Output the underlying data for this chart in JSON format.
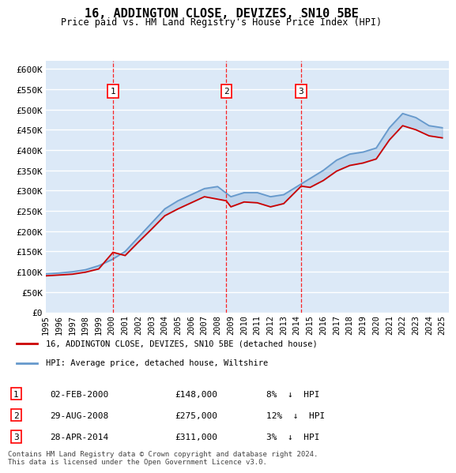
{
  "title": "16, ADDINGTON CLOSE, DEVIZES, SN10 5BE",
  "subtitle": "Price paid vs. HM Land Registry's House Price Index (HPI)",
  "ylabel_ticks": [
    "£0",
    "£50K",
    "£100K",
    "£150K",
    "£200K",
    "£250K",
    "£300K",
    "£350K",
    "£400K",
    "£450K",
    "£500K",
    "£550K",
    "£600K"
  ],
  "ytick_vals": [
    0,
    50000,
    100000,
    150000,
    200000,
    250000,
    300000,
    350000,
    400000,
    450000,
    500000,
    550000,
    600000
  ],
  "ylim": [
    0,
    620000
  ],
  "background_color": "#dce9f7",
  "plot_bg": "#dce9f7",
  "grid_color": "#ffffff",
  "line_color_red": "#cc0000",
  "line_color_blue": "#6699cc",
  "transactions": [
    {
      "num": 1,
      "date": "02-FEB-2000",
      "price": 148000,
      "pct": "8%",
      "direction": "↓",
      "x_year": 2000.08
    },
    {
      "num": 2,
      "date": "29-AUG-2008",
      "price": 275000,
      "pct": "12%",
      "direction": "↓",
      "x_year": 2008.65
    },
    {
      "num": 3,
      "date": "28-APR-2014",
      "price": 311000,
      "pct": "3%",
      "direction": "↓",
      "x_year": 2014.32
    }
  ],
  "legend_label_red": "16, ADDINGTON CLOSE, DEVIZES, SN10 5BE (detached house)",
  "legend_label_blue": "HPI: Average price, detached house, Wiltshire",
  "footer": "Contains HM Land Registry data © Crown copyright and database right 2024.\nThis data is licensed under the Open Government Licence v3.0.",
  "hpi_years": [
    1995,
    1996,
    1997,
    1998,
    1999,
    2000,
    2001,
    2002,
    2003,
    2004,
    2005,
    2006,
    2007,
    2008,
    2009,
    2010,
    2011,
    2012,
    2013,
    2014,
    2015,
    2016,
    2017,
    2018,
    2019,
    2020,
    2021,
    2022,
    2023,
    2024,
    2025
  ],
  "hpi_vals": [
    95000,
    97000,
    100000,
    105000,
    115000,
    130000,
    150000,
    185000,
    220000,
    255000,
    275000,
    290000,
    305000,
    310000,
    285000,
    295000,
    295000,
    285000,
    290000,
    310000,
    330000,
    350000,
    375000,
    390000,
    395000,
    405000,
    455000,
    490000,
    480000,
    460000,
    455000
  ],
  "price_years": [
    1995,
    1996,
    1997,
    1998,
    1999,
    2000.08,
    2001,
    2002,
    2003,
    2004,
    2005,
    2006,
    2007,
    2008.65,
    2009,
    2010,
    2011,
    2012,
    2013,
    2014.32,
    2015,
    2016,
    2017,
    2018,
    2019,
    2020,
    2021,
    2022,
    2023,
    2024,
    2025
  ],
  "price_vals": [
    90000,
    92000,
    94000,
    99000,
    107000,
    148000,
    140000,
    173000,
    205000,
    238000,
    255000,
    270000,
    285000,
    275000,
    260000,
    272000,
    270000,
    260000,
    268000,
    311000,
    308000,
    325000,
    348000,
    362000,
    368000,
    378000,
    425000,
    460000,
    450000,
    435000,
    430000
  ],
  "xtick_years": [
    1995,
    1996,
    1997,
    1998,
    1999,
    2000,
    2001,
    2002,
    2003,
    2004,
    2005,
    2006,
    2007,
    2008,
    2009,
    2010,
    2011,
    2012,
    2013,
    2014,
    2015,
    2016,
    2017,
    2018,
    2019,
    2020,
    2021,
    2022,
    2023,
    2024,
    2025
  ]
}
